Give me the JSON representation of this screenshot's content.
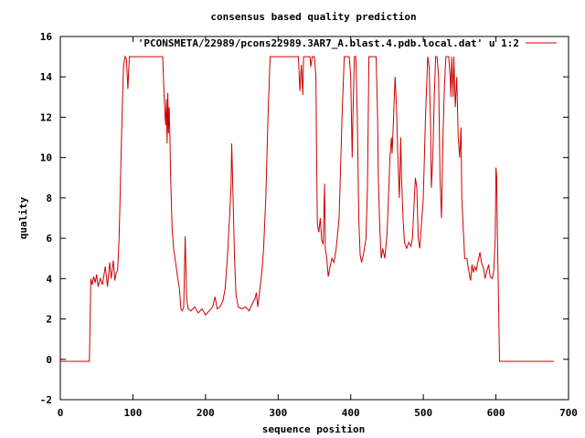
{
  "chart_data": {
    "type": "line",
    "title": "consensus based quality prediction",
    "xlabel": "sequence position",
    "ylabel": "quality",
    "xlim": [
      0,
      700
    ],
    "ylim": [
      -2,
      16
    ],
    "xticks": [
      "0",
      "100",
      "200",
      "300",
      "400",
      "500",
      "600",
      "700"
    ],
    "yticks": [
      "-2",
      "0",
      "2",
      "4",
      "6",
      "8",
      "10",
      "12",
      "14",
      "16"
    ],
    "grid": false,
    "legend_position": "top-right",
    "line_color": "#cc0000",
    "series": [
      {
        "name": "'PCONSMETA/22989/pcons22989.3AR7_A.blast.4.pdb.local.dat' u 1:2",
        "points": [
          [
            0,
            -0.1
          ],
          [
            40,
            -0.1
          ],
          [
            42,
            4.0
          ],
          [
            44,
            3.7
          ],
          [
            46,
            4.1
          ],
          [
            48,
            3.8
          ],
          [
            50,
            4.2
          ],
          [
            52,
            3.6
          ],
          [
            55,
            4.0
          ],
          [
            58,
            3.7
          ],
          [
            62,
            4.6
          ],
          [
            65,
            3.6
          ],
          [
            68,
            4.8
          ],
          [
            70,
            4.0
          ],
          [
            73,
            4.9
          ],
          [
            75,
            3.9
          ],
          [
            77,
            4.3
          ],
          [
            79,
            4.4
          ],
          [
            81,
            6.0
          ],
          [
            83,
            9.0
          ],
          [
            85,
            12.0
          ],
          [
            87,
            14.5
          ],
          [
            89,
            15.0
          ],
          [
            91,
            14.9
          ],
          [
            93,
            13.4
          ],
          [
            95,
            15.0
          ],
          [
            100,
            15.0
          ],
          [
            110,
            15.0
          ],
          [
            120,
            15.0
          ],
          [
            130,
            15.0
          ],
          [
            141,
            15.0
          ],
          [
            143,
            13.0
          ],
          [
            145,
            11.6
          ],
          [
            146,
            12.9
          ],
          [
            147,
            10.7
          ],
          [
            148,
            13.2
          ],
          [
            149,
            11.2
          ],
          [
            150,
            12.5
          ],
          [
            151,
            11.0
          ],
          [
            152,
            9.0
          ],
          [
            154,
            6.5
          ],
          [
            156,
            5.5
          ],
          [
            158,
            5.0
          ],
          [
            161,
            4.2
          ],
          [
            164,
            3.5
          ],
          [
            166,
            2.5
          ],
          [
            168,
            2.4
          ],
          [
            170,
            2.6
          ],
          [
            172,
            6.1
          ],
          [
            174,
            3.0
          ],
          [
            176,
            2.5
          ],
          [
            180,
            2.4
          ],
          [
            185,
            2.6
          ],
          [
            190,
            2.3
          ],
          [
            195,
            2.5
          ],
          [
            200,
            2.2
          ],
          [
            205,
            2.4
          ],
          [
            210,
            2.6
          ],
          [
            213,
            3.1
          ],
          [
            216,
            2.5
          ],
          [
            220,
            2.6
          ],
          [
            224,
            2.9
          ],
          [
            227,
            3.5
          ],
          [
            230,
            5.0
          ],
          [
            233,
            7.0
          ],
          [
            235,
            8.5
          ],
          [
            236,
            10.7
          ],
          [
            238,
            8.0
          ],
          [
            240,
            5.0
          ],
          [
            242,
            3.2
          ],
          [
            245,
            2.6
          ],
          [
            250,
            2.5
          ],
          [
            255,
            2.6
          ],
          [
            260,
            2.4
          ],
          [
            265,
            2.8
          ],
          [
            268,
            3.0
          ],
          [
            270,
            3.3
          ],
          [
            272,
            2.6
          ],
          [
            275,
            3.5
          ],
          [
            278,
            4.5
          ],
          [
            280,
            5.5
          ],
          [
            283,
            8.0
          ],
          [
            286,
            12.0
          ],
          [
            289,
            15.0
          ],
          [
            300,
            15.0
          ],
          [
            310,
            15.0
          ],
          [
            320,
            15.0
          ],
          [
            328,
            15.0
          ],
          [
            330,
            13.3
          ],
          [
            332,
            14.6
          ],
          [
            334,
            13.1
          ],
          [
            335,
            15.0
          ],
          [
            340,
            15.0
          ],
          [
            344,
            15.0
          ],
          [
            345,
            14.5
          ],
          [
            347,
            15.0
          ],
          [
            350,
            15.0
          ],
          [
            352,
            14.0
          ],
          [
            353,
            10.0
          ],
          [
            354,
            6.7
          ],
          [
            356,
            6.3
          ],
          [
            358,
            7.0
          ],
          [
            360,
            5.9
          ],
          [
            362,
            5.7
          ],
          [
            364,
            8.7
          ],
          [
            365,
            5.5
          ],
          [
            367,
            5.0
          ],
          [
            369,
            4.1
          ],
          [
            371,
            4.5
          ],
          [
            374,
            5.0
          ],
          [
            377,
            4.8
          ],
          [
            380,
            5.5
          ],
          [
            384,
            7.0
          ],
          [
            388,
            12.0
          ],
          [
            391,
            15.0
          ],
          [
            393,
            15.0
          ],
          [
            396,
            15.0
          ],
          [
            398,
            15.0
          ],
          [
            400,
            14.0
          ],
          [
            402,
            10.0
          ],
          [
            403,
            12.0
          ],
          [
            405,
            15.0
          ],
          [
            407,
            15.0
          ],
          [
            409,
            12.0
          ],
          [
            411,
            7.0
          ],
          [
            413,
            5.2
          ],
          [
            415,
            4.8
          ],
          [
            418,
            5.3
          ],
          [
            421,
            6.0
          ],
          [
            423,
            8.5
          ],
          [
            425,
            15.0
          ],
          [
            430,
            15.0
          ],
          [
            435,
            15.0
          ],
          [
            437,
            12.0
          ],
          [
            438,
            9.0
          ],
          [
            440,
            6.5
          ],
          [
            442,
            5.0
          ],
          [
            444,
            5.5
          ],
          [
            447,
            5.0
          ],
          [
            449,
            5.8
          ],
          [
            450,
            6.2
          ],
          [
            452,
            8.0
          ],
          [
            454,
            10.0
          ],
          [
            456,
            11.0
          ],
          [
            457,
            10.2
          ],
          [
            459,
            12.0
          ],
          [
            461,
            14.0
          ],
          [
            463,
            12.5
          ],
          [
            465,
            10.0
          ],
          [
            467,
            8.0
          ],
          [
            469,
            11.0
          ],
          [
            470,
            9.0
          ],
          [
            472,
            7.0
          ],
          [
            474,
            5.8
          ],
          [
            477,
            5.5
          ],
          [
            480,
            5.8
          ],
          [
            483,
            5.6
          ],
          [
            485,
            6.0
          ],
          [
            487,
            7.5
          ],
          [
            489,
            9.0
          ],
          [
            491,
            8.5
          ],
          [
            493,
            6.0
          ],
          [
            495,
            5.5
          ],
          [
            497,
            6.5
          ],
          [
            500,
            8.0
          ],
          [
            503,
            12.0
          ],
          [
            506,
            15.0
          ],
          [
            508,
            14.5
          ],
          [
            510,
            11.5
          ],
          [
            511,
            8.5
          ],
          [
            513,
            10.0
          ],
          [
            515,
            13.0
          ],
          [
            517,
            15.0
          ],
          [
            519,
            15.0
          ],
          [
            521,
            14.0
          ],
          [
            523,
            9.0
          ],
          [
            525,
            7.0
          ],
          [
            527,
            11.0
          ],
          [
            529,
            13.5
          ],
          [
            531,
            15.0
          ],
          [
            535,
            15.0
          ],
          [
            537,
            14.0
          ],
          [
            538,
            13.0
          ],
          [
            539,
            15.0
          ],
          [
            541,
            13.0
          ],
          [
            542,
            15.0
          ],
          [
            544,
            12.5
          ],
          [
            546,
            14.0
          ],
          [
            548,
            11.0
          ],
          [
            550,
            10.0
          ],
          [
            552,
            11.5
          ],
          [
            553,
            8.0
          ],
          [
            555,
            6.5
          ],
          [
            557,
            5.0
          ],
          [
            560,
            5.0
          ],
          [
            562,
            4.5
          ],
          [
            565,
            3.9
          ],
          [
            567,
            4.7
          ],
          [
            569,
            4.3
          ],
          [
            571,
            4.6
          ],
          [
            573,
            4.4
          ],
          [
            575,
            4.8
          ],
          [
            578,
            5.3
          ],
          [
            580,
            4.8
          ],
          [
            583,
            4.5
          ],
          [
            585,
            4.0
          ],
          [
            587,
            4.3
          ],
          [
            590,
            4.7
          ],
          [
            592,
            4.1
          ],
          [
            595,
            4.0
          ],
          [
            597,
            4.4
          ],
          [
            599,
            6.0
          ],
          [
            600,
            9.5
          ],
          [
            601,
            9.0
          ],
          [
            602,
            6.0
          ],
          [
            603,
            4.0
          ],
          [
            605,
            -0.1
          ],
          [
            620,
            -0.1
          ],
          [
            680,
            -0.1
          ]
        ]
      }
    ]
  }
}
